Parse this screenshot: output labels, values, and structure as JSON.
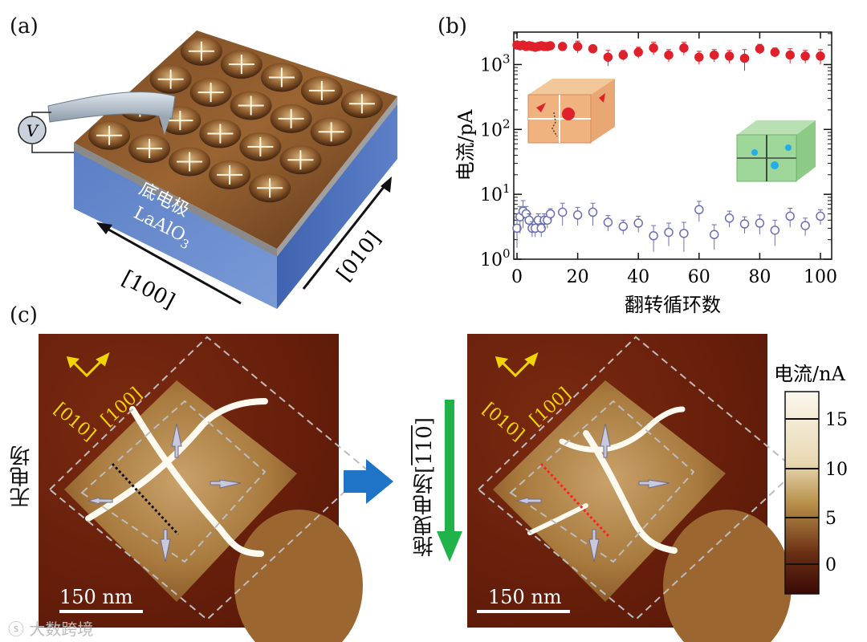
{
  "panels": {
    "a": "(a)",
    "b": "(b)",
    "c": "(c)"
  },
  "panel_a": {
    "voltmeter": "V",
    "bottom_electrode": "底电极",
    "substrate": "LaAlO",
    "substrate_sub": "3",
    "dir_100": "[100]",
    "dir_010": "[010]"
  },
  "chart_data": {
    "type": "scatter",
    "title": "",
    "xlabel": "翻转循环数",
    "ylabel": "电流/pA",
    "xscale": "linear",
    "yscale": "log",
    "xlim": [
      0,
      100
    ],
    "ylim": [
      1,
      3162
    ],
    "xticks": [
      0,
      20,
      40,
      60,
      80,
      100
    ],
    "yticks": [
      {
        "value": 1,
        "base": "10",
        "exp": "0"
      },
      {
        "value": 10,
        "base": "10",
        "exp": "1"
      },
      {
        "value": 100,
        "base": "10",
        "exp": "2"
      },
      {
        "value": 1000,
        "base": "10",
        "exp": "3"
      }
    ],
    "series": [
      {
        "name": "high",
        "marker": "filled-circle",
        "color": "#e0202a",
        "x": [
          0,
          1,
          2,
          3,
          4,
          5,
          6,
          7,
          8,
          9,
          10,
          11,
          15,
          20,
          25,
          30,
          35,
          40,
          45,
          50,
          55,
          60,
          65,
          70,
          75,
          80,
          85,
          90,
          95,
          100
        ],
        "y": [
          2000,
          1950,
          2000,
          1900,
          1950,
          1900,
          1850,
          1900,
          1950,
          1900,
          1900,
          1950,
          1900,
          1900,
          1750,
          1300,
          1400,
          1550,
          1800,
          1400,
          1800,
          1300,
          1400,
          1350,
          1250,
          1750,
          1550,
          1400,
          1350,
          1350
        ],
        "err": [
          150,
          150,
          150,
          150,
          150,
          150,
          150,
          150,
          150,
          150,
          150,
          150,
          250,
          400,
          250,
          350,
          250,
          300,
          400,
          300,
          400,
          300,
          300,
          300,
          450,
          300,
          250,
          350,
          300,
          350
        ]
      },
      {
        "name": "low",
        "marker": "open-circle",
        "color": "#6b6fb5",
        "x": [
          0,
          1,
          2,
          3,
          4,
          5,
          6,
          7,
          8,
          9,
          10,
          11,
          15,
          20,
          25,
          30,
          35,
          40,
          45,
          50,
          55,
          60,
          65,
          70,
          75,
          80,
          85,
          90,
          95,
          100
        ],
        "y": [
          3.0,
          4.5,
          5.5,
          5.0,
          4.0,
          3.0,
          3.0,
          4.0,
          3.0,
          4.0,
          4.0,
          5.0,
          5.3,
          4.8,
          5.3,
          3.7,
          3.2,
          3.6,
          2.3,
          2.6,
          2.5,
          5.8,
          2.4,
          4.3,
          3.5,
          3.6,
          2.8,
          4.6,
          3.3,
          4.6
        ],
        "err": [
          1.5,
          2.0,
          2.5,
          1.5,
          1.0,
          0.8,
          0.8,
          1.0,
          0.8,
          1.0,
          1.0,
          1.0,
          2.0,
          1.5,
          2.0,
          1.0,
          0.8,
          1.0,
          1.0,
          1.0,
          1.2,
          2.0,
          1.0,
          1.2,
          1.0,
          1.2,
          1.2,
          1.5,
          1.0,
          1.2
        ]
      }
    ]
  },
  "panel_c": {
    "no_field": "无电场",
    "with_field": "拖曳电场[",
    "field_dir": "110",
    "field_close": "]",
    "dir_010": "[010]",
    "dir_100": "[100]",
    "scalebar": "150 nm",
    "colorbar_title": "电流/nA",
    "colorbar_ticks": [
      "15",
      "10",
      "5",
      "0"
    ]
  },
  "watermark": "大数跨境"
}
